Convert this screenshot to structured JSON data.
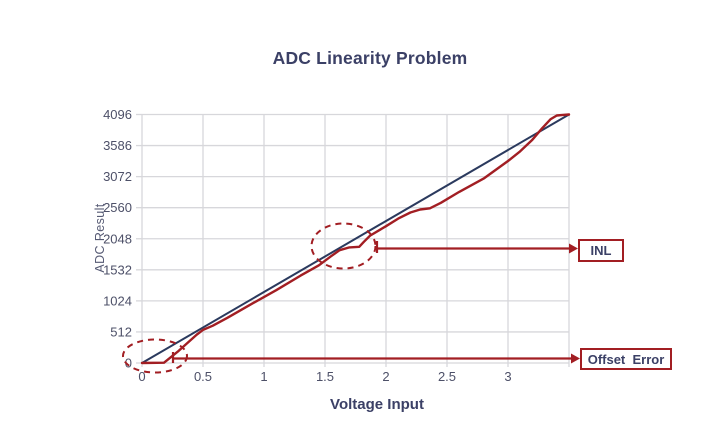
{
  "chart_data": {
    "type": "line",
    "title": "ADC Linearity Problem",
    "xlabel": "Voltage Input",
    "ylabel": "ADC Result",
    "xlim": [
      0,
      3.5
    ],
    "ylim": [
      0,
      4096
    ],
    "grid": true,
    "x_ticks": [
      "0",
      "0.5",
      "1",
      "1.5",
      "2",
      "2.5",
      "3"
    ],
    "y_ticks": [
      "0",
      "512",
      "1024",
      "1532",
      "2048",
      "2560",
      "3072",
      "3586",
      "4096"
    ],
    "series": [
      {
        "name": "ideal-transfer-line",
        "color": "#2b3a5e",
        "points": [
          [
            0,
            0
          ],
          [
            3.5,
            4096
          ]
        ]
      },
      {
        "name": "actual-adc-curve",
        "color": "#a21e23",
        "points": [
          [
            0,
            0
          ],
          [
            0.18,
            5
          ],
          [
            0.3,
            200
          ],
          [
            0.45,
            470
          ],
          [
            0.5,
            545
          ],
          [
            0.58,
            615
          ],
          [
            0.7,
            745
          ],
          [
            0.9,
            975
          ],
          [
            1.1,
            1200
          ],
          [
            1.3,
            1440
          ],
          [
            1.45,
            1610
          ],
          [
            1.55,
            1760
          ],
          [
            1.62,
            1860
          ],
          [
            1.7,
            1905
          ],
          [
            1.78,
            1915
          ],
          [
            1.82,
            2000
          ],
          [
            1.87,
            2100
          ],
          [
            2.0,
            2255
          ],
          [
            2.1,
            2380
          ],
          [
            2.2,
            2480
          ],
          [
            2.28,
            2530
          ],
          [
            2.36,
            2550
          ],
          [
            2.45,
            2640
          ],
          [
            2.6,
            2820
          ],
          [
            2.8,
            3040
          ],
          [
            3.0,
            3330
          ],
          [
            3.1,
            3490
          ],
          [
            3.2,
            3680
          ],
          [
            3.28,
            3870
          ],
          [
            3.35,
            4020
          ],
          [
            3.4,
            4080
          ],
          [
            3.45,
            4090
          ],
          [
            3.5,
            4096
          ]
        ]
      }
    ],
    "annotations": [
      {
        "label": "INL",
        "highlight": "mid-scale step on actual curve"
      },
      {
        "label": "Offset  Error",
        "highlight": "non-zero start of actual curve at origin"
      }
    ],
    "colors": {
      "title_text": "#3b4066",
      "tick_text": "#4d5068",
      "grid": "#d7d7db",
      "ideal_line": "#2b3a5e",
      "actual_line": "#a21e23",
      "annotation_red": "#a21e23",
      "background": "#ffffff"
    }
  }
}
